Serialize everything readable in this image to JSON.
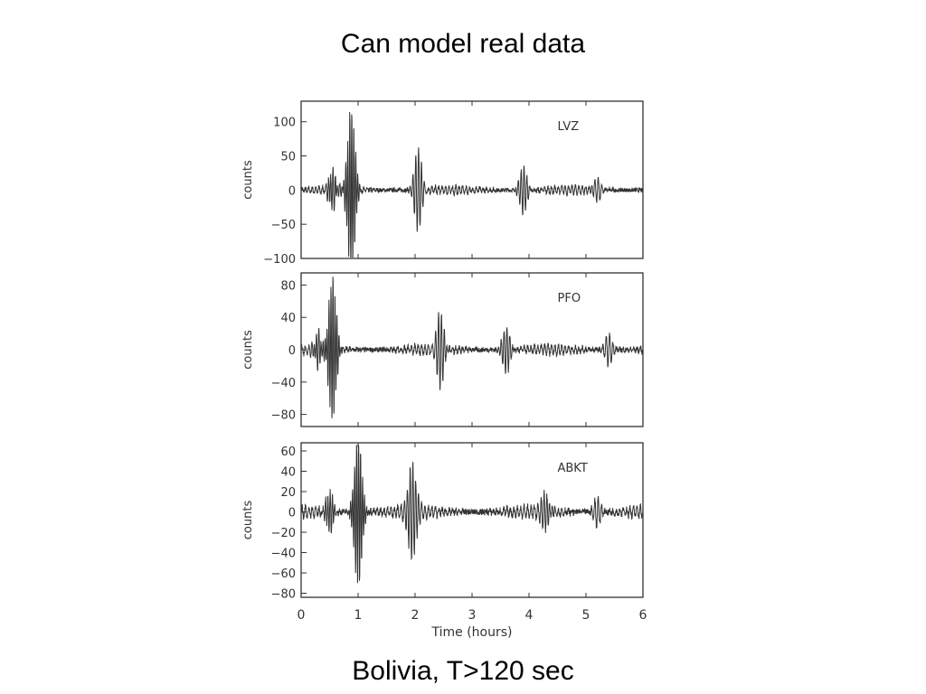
{
  "slide": {
    "title": "Can model real data",
    "caption": "Bolivia, T>120 sec"
  },
  "chart_data": {
    "type": "line",
    "xlabel": "Time (hours)",
    "xlim": [
      0,
      6
    ],
    "x_ticks": [
      0,
      1,
      2,
      3,
      4,
      5,
      6
    ],
    "line_color": "#333333",
    "panels": [
      {
        "station": "LVZ",
        "ylabel": "counts",
        "ylim": [
          -100,
          130
        ],
        "y_ticks": [
          100,
          50,
          0,
          -50,
          -100
        ],
        "series_hint": [
          {
            "t": 0.55,
            "amp": 30,
            "period": 0.04
          },
          {
            "t": 0.88,
            "amp": 120,
            "period": 0.035
          },
          {
            "t": 2.05,
            "amp": 60,
            "period": 0.05
          },
          {
            "t": 3.9,
            "amp": 35,
            "period": 0.05
          },
          {
            "t": 5.2,
            "amp": 20,
            "period": 0.06
          }
        ]
      },
      {
        "station": "PFO",
        "ylabel": "counts",
        "ylim": [
          -95,
          95
        ],
        "y_ticks": [
          80,
          40,
          0,
          -40,
          -80
        ],
        "series_hint": [
          {
            "t": 0.3,
            "amp": 20,
            "period": 0.04
          },
          {
            "t": 0.55,
            "amp": 90,
            "period": 0.035
          },
          {
            "t": 2.45,
            "amp": 45,
            "period": 0.05
          },
          {
            "t": 3.6,
            "amp": 30,
            "period": 0.05
          },
          {
            "t": 5.4,
            "amp": 20,
            "period": 0.06
          }
        ]
      },
      {
        "station": "ABKT",
        "ylabel": "counts",
        "ylim": [
          -84,
          68
        ],
        "y_ticks": [
          60,
          40,
          20,
          0,
          -20,
          -40,
          -60,
          -80
        ],
        "series_hint": [
          {
            "t": 0.5,
            "amp": 20,
            "period": 0.04
          },
          {
            "t": 1.0,
            "amp": 75,
            "period": 0.035
          },
          {
            "t": 1.95,
            "amp": 55,
            "period": 0.05
          },
          {
            "t": 4.3,
            "amp": 20,
            "period": 0.05
          },
          {
            "t": 5.2,
            "amp": 15,
            "period": 0.06
          }
        ]
      }
    ]
  }
}
